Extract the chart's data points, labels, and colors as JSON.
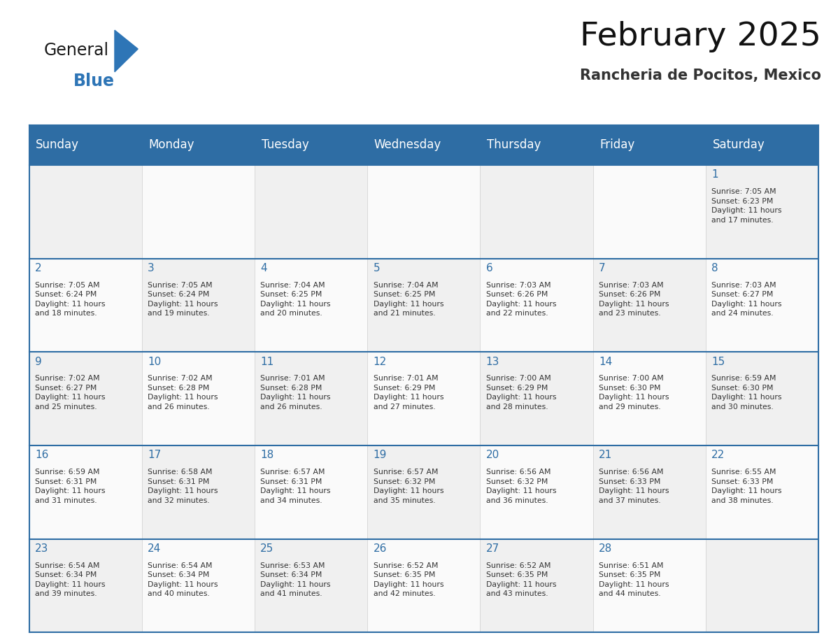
{
  "title": "February 2025",
  "subtitle": "Rancheria de Pocitos, Mexico",
  "header_bg": "#2E6DA4",
  "header_text_color": "#FFFFFF",
  "border_color": "#2E6DA4",
  "day_number_color": "#2E6DA4",
  "text_color": "#333333",
  "days_of_week": [
    "Sunday",
    "Monday",
    "Tuesday",
    "Wednesday",
    "Thursday",
    "Friday",
    "Saturday"
  ],
  "weeks": [
    [
      {
        "day": null,
        "info": null
      },
      {
        "day": null,
        "info": null
      },
      {
        "day": null,
        "info": null
      },
      {
        "day": null,
        "info": null
      },
      {
        "day": null,
        "info": null
      },
      {
        "day": null,
        "info": null
      },
      {
        "day": 1,
        "info": "Sunrise: 7:05 AM\nSunset: 6:23 PM\nDaylight: 11 hours\nand 17 minutes."
      }
    ],
    [
      {
        "day": 2,
        "info": "Sunrise: 7:05 AM\nSunset: 6:24 PM\nDaylight: 11 hours\nand 18 minutes."
      },
      {
        "day": 3,
        "info": "Sunrise: 7:05 AM\nSunset: 6:24 PM\nDaylight: 11 hours\nand 19 minutes."
      },
      {
        "day": 4,
        "info": "Sunrise: 7:04 AM\nSunset: 6:25 PM\nDaylight: 11 hours\nand 20 minutes."
      },
      {
        "day": 5,
        "info": "Sunrise: 7:04 AM\nSunset: 6:25 PM\nDaylight: 11 hours\nand 21 minutes."
      },
      {
        "day": 6,
        "info": "Sunrise: 7:03 AM\nSunset: 6:26 PM\nDaylight: 11 hours\nand 22 minutes."
      },
      {
        "day": 7,
        "info": "Sunrise: 7:03 AM\nSunset: 6:26 PM\nDaylight: 11 hours\nand 23 minutes."
      },
      {
        "day": 8,
        "info": "Sunrise: 7:03 AM\nSunset: 6:27 PM\nDaylight: 11 hours\nand 24 minutes."
      }
    ],
    [
      {
        "day": 9,
        "info": "Sunrise: 7:02 AM\nSunset: 6:27 PM\nDaylight: 11 hours\nand 25 minutes."
      },
      {
        "day": 10,
        "info": "Sunrise: 7:02 AM\nSunset: 6:28 PM\nDaylight: 11 hours\nand 26 minutes."
      },
      {
        "day": 11,
        "info": "Sunrise: 7:01 AM\nSunset: 6:28 PM\nDaylight: 11 hours\nand 26 minutes."
      },
      {
        "day": 12,
        "info": "Sunrise: 7:01 AM\nSunset: 6:29 PM\nDaylight: 11 hours\nand 27 minutes."
      },
      {
        "day": 13,
        "info": "Sunrise: 7:00 AM\nSunset: 6:29 PM\nDaylight: 11 hours\nand 28 minutes."
      },
      {
        "day": 14,
        "info": "Sunrise: 7:00 AM\nSunset: 6:30 PM\nDaylight: 11 hours\nand 29 minutes."
      },
      {
        "day": 15,
        "info": "Sunrise: 6:59 AM\nSunset: 6:30 PM\nDaylight: 11 hours\nand 30 minutes."
      }
    ],
    [
      {
        "day": 16,
        "info": "Sunrise: 6:59 AM\nSunset: 6:31 PM\nDaylight: 11 hours\nand 31 minutes."
      },
      {
        "day": 17,
        "info": "Sunrise: 6:58 AM\nSunset: 6:31 PM\nDaylight: 11 hours\nand 32 minutes."
      },
      {
        "day": 18,
        "info": "Sunrise: 6:57 AM\nSunset: 6:31 PM\nDaylight: 11 hours\nand 34 minutes."
      },
      {
        "day": 19,
        "info": "Sunrise: 6:57 AM\nSunset: 6:32 PM\nDaylight: 11 hours\nand 35 minutes."
      },
      {
        "day": 20,
        "info": "Sunrise: 6:56 AM\nSunset: 6:32 PM\nDaylight: 11 hours\nand 36 minutes."
      },
      {
        "day": 21,
        "info": "Sunrise: 6:56 AM\nSunset: 6:33 PM\nDaylight: 11 hours\nand 37 minutes."
      },
      {
        "day": 22,
        "info": "Sunrise: 6:55 AM\nSunset: 6:33 PM\nDaylight: 11 hours\nand 38 minutes."
      }
    ],
    [
      {
        "day": 23,
        "info": "Sunrise: 6:54 AM\nSunset: 6:34 PM\nDaylight: 11 hours\nand 39 minutes."
      },
      {
        "day": 24,
        "info": "Sunrise: 6:54 AM\nSunset: 6:34 PM\nDaylight: 11 hours\nand 40 minutes."
      },
      {
        "day": 25,
        "info": "Sunrise: 6:53 AM\nSunset: 6:34 PM\nDaylight: 11 hours\nand 41 minutes."
      },
      {
        "day": 26,
        "info": "Sunrise: 6:52 AM\nSunset: 6:35 PM\nDaylight: 11 hours\nand 42 minutes."
      },
      {
        "day": 27,
        "info": "Sunrise: 6:52 AM\nSunset: 6:35 PM\nDaylight: 11 hours\nand 43 minutes."
      },
      {
        "day": 28,
        "info": "Sunrise: 6:51 AM\nSunset: 6:35 PM\nDaylight: 11 hours\nand 44 minutes."
      },
      {
        "day": null,
        "info": null
      }
    ]
  ],
  "logo_general_color": "#1a1a1a",
  "logo_blue_color": "#2E75B6",
  "logo_triangle_color": "#2E75B6",
  "cell_bg_even": "#F0F0F0",
  "cell_bg_odd": "#FAFAFA"
}
